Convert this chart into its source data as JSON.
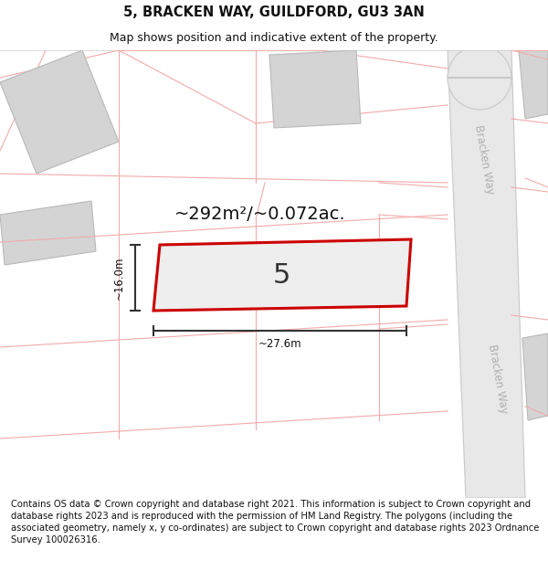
{
  "title_line1": "5, BRACKEN WAY, GUILDFORD, GU3 3AN",
  "title_line2": "Map shows position and indicative extent of the property.",
  "footer_text": "Contains OS data © Crown copyright and database right 2021. This information is subject to Crown copyright and database rights 2023 and is reproduced with the permission of HM Land Registry. The polygons (including the associated geometry, namely x, y co-ordinates) are subject to Crown copyright and database rights 2023 Ordnance Survey 100026316.",
  "area_label": "~292m²/~0.072ac.",
  "plot_number": "5",
  "width_label": "~27.6m",
  "height_label": "~16.0m",
  "bg_color": "#ffffff",
  "plot_fill": "#eeeeee",
  "plot_edge_color": "#cc0000",
  "road_fill": "#e8e8e8",
  "road_edge": "#c8c8c8",
  "building_fill": "#d4d4d4",
  "building_edge": "#b8b8b8",
  "pink_line_color": "#f2aaaa",
  "road_label_color": "#b0b0b0",
  "dim_line_color": "#333333",
  "title_fontsize": 10.5,
  "subtitle_fontsize": 9,
  "footer_fontsize": 7.2,
  "area_fontsize": 14,
  "plot_num_fontsize": 22,
  "dim_fontsize": 8.5
}
